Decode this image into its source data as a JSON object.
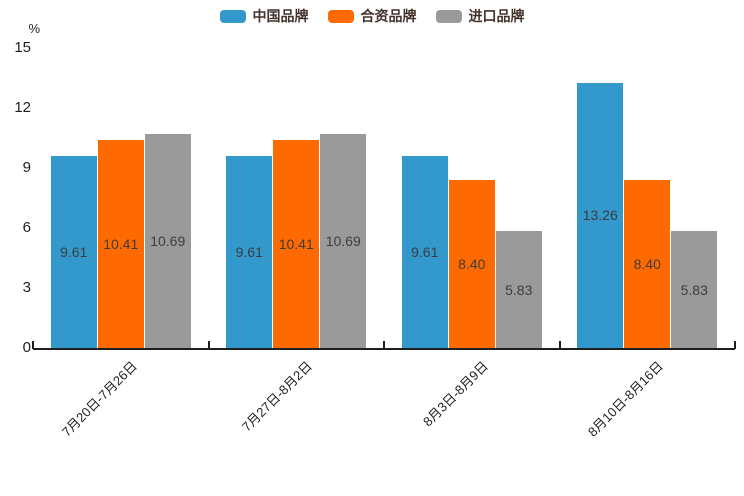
{
  "chart_data": {
    "type": "bar",
    "title": "",
    "categories": [
      "7月20日-7月26日",
      "7月27日-8月2日",
      "8月3日-8月9日",
      "8月10日-8月16日"
    ],
    "series": [
      {
        "name": "中国品牌",
        "color": "#3398cc",
        "values": [
          9.61,
          9.61,
          9.61,
          13.26
        ],
        "labels": [
          "9.61",
          "9.61",
          "9.61",
          "13.26"
        ]
      },
      {
        "name": "合资品牌",
        "color": "#ff6a00",
        "values": [
          10.41,
          10.41,
          8.4,
          8.4
        ],
        "labels": [
          "10.41",
          "10.41",
          "8.40",
          "8.40"
        ]
      },
      {
        "name": "进口品牌",
        "color": "#9a9a9a",
        "values": [
          10.69,
          10.69,
          5.83,
          5.83
        ],
        "labels": [
          "10.69",
          "10.69",
          "5.83",
          "5.83"
        ]
      }
    ],
    "xlabel": "",
    "ylabel": "%",
    "yticks": [
      "0",
      "3",
      "6",
      "9",
      "12",
      "15"
    ],
    "ylim": [
      0,
      15
    ],
    "grid": false,
    "legend_position": "top",
    "value_label_position": "centered-inside-bar"
  },
  "colors": {
    "background": "#ffffff",
    "axis": "#1f1f1f",
    "value_label": "#3d3d3d",
    "legend_text": "#43322b",
    "series_blue": "#3398cc",
    "series_orange": "#ff6a00",
    "series_gray": "#9a9a9a"
  }
}
